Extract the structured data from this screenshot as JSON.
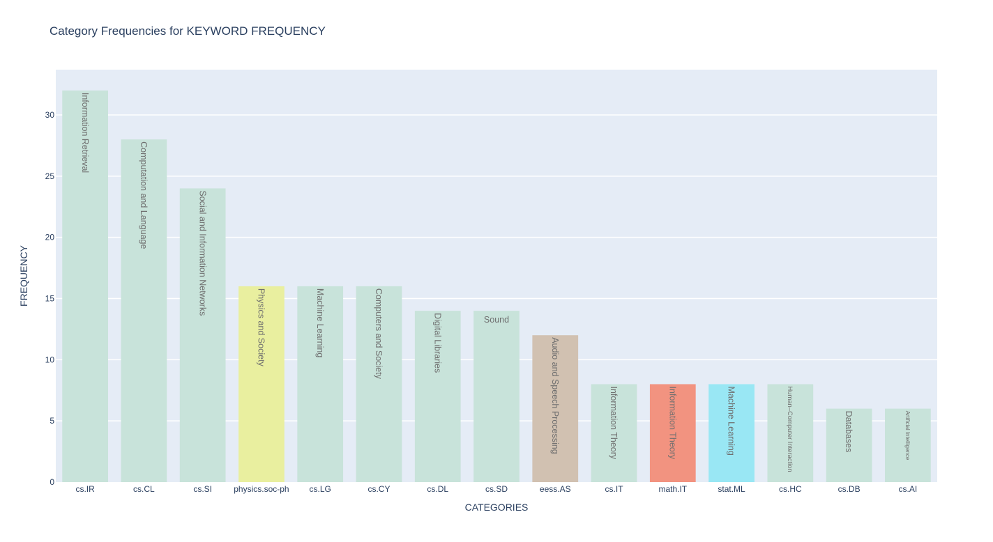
{
  "chart_data": {
    "type": "bar",
    "title": "Category Frequencies for KEYWORD FREQUENCY",
    "xlabel": "CATEGORIES",
    "ylabel": "FREQUENCY",
    "ylim": [
      0,
      33.7
    ],
    "yticks": [
      0,
      5,
      10,
      15,
      20,
      25,
      30
    ],
    "grid": true,
    "categories": [
      "cs.IR",
      "cs.CL",
      "cs.SI",
      "physics.soc-ph",
      "cs.LG",
      "cs.CY",
      "cs.DL",
      "cs.SD",
      "eess.AS",
      "cs.IT",
      "math.IT",
      "stat.ML",
      "cs.HC",
      "cs.DB",
      "cs.AI"
    ],
    "values": [
      32,
      28,
      24,
      16,
      16,
      16,
      14,
      14,
      12,
      8,
      8,
      8,
      8,
      6,
      6
    ],
    "bar_labels": [
      "Information Retrieval",
      "Computation and Language",
      "Social and Information Networks",
      "Physics and Society",
      "Machine Learning",
      "Computers and Society",
      "Digital Libraries",
      "Sound",
      "Audio and Speech Processing",
      "Information Theory",
      "Information Theory",
      "Machine Learning",
      "Human–Computer Interaction",
      "Databases",
      "Artificial Intelligence"
    ],
    "bar_colors": [
      "#c8e3da",
      "#c8e3da",
      "#c8e3da",
      "#e9ef9f",
      "#c8e3da",
      "#c8e3da",
      "#c8e3da",
      "#c8e3da",
      "#d1c1b1",
      "#c8e3da",
      "#f29380",
      "#99e7f4",
      "#c8e3da",
      "#c8e3da",
      "#c8e3da"
    ],
    "colors": {
      "plot_background": "#e5ecf6",
      "grid": "#ffffff",
      "title": "#2a3f5f",
      "tick_text": "#2a3f5f",
      "bar_label_text": "#6f6f6f"
    }
  }
}
